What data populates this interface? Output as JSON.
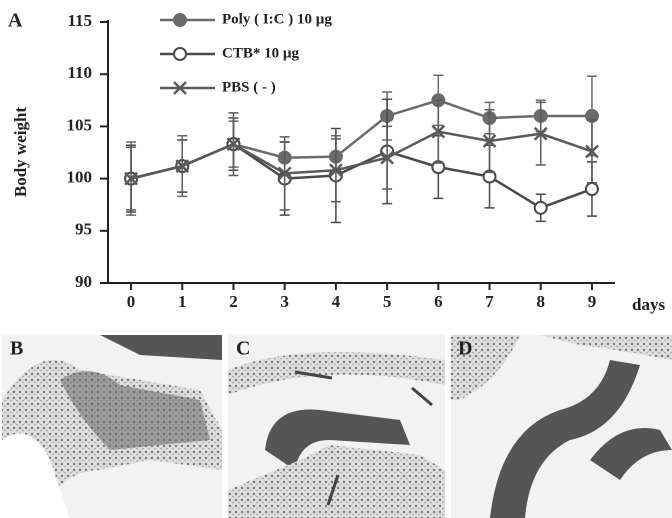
{
  "chart_data": {
    "type": "line",
    "panel_label": "A",
    "ylabel": "Body weight",
    "xlabel": "days",
    "x": [
      0,
      1,
      2,
      3,
      4,
      5,
      6,
      7,
      8,
      9
    ],
    "xlim": [
      -0.45,
      9.45
    ],
    "xticks": [
      0,
      1,
      2,
      3,
      4,
      5,
      6,
      7,
      8,
      9
    ],
    "ylim": [
      90,
      115
    ],
    "yticks": [
      90,
      95,
      100,
      105,
      110,
      115
    ],
    "grid": false,
    "legend": "upper left",
    "series": [
      {
        "name": "Poly ( I:C ) 10 µg",
        "color": "#6a6a6a",
        "marker": "filled-circle",
        "values": [
          100,
          101.2,
          103.3,
          102,
          102.1,
          106,
          107.5,
          105.8,
          106,
          106
        ],
        "errors": [
          3.5,
          2.9,
          2.2,
          1.5,
          2,
          2.3,
          2.4,
          1.5,
          1.5,
          3.8
        ]
      },
      {
        "name": "CTB* 10 µg",
        "color": "#4a4a4a",
        "marker": "open-circle",
        "values": [
          100,
          101.2,
          103.3,
          100,
          100.3,
          102.6,
          101.1,
          100.2,
          97.2,
          99
        ],
        "errors": [
          3.2,
          2.5,
          2.5,
          3.5,
          4.5,
          5,
          3,
          3,
          1.3,
          2.6
        ]
      },
      {
        "name": "PBS ( - )",
        "color": "#5a5a5a",
        "marker": "cross",
        "values": [
          100,
          101.2,
          103.3,
          100.5,
          100.8,
          102,
          104.5,
          103.6,
          104.3,
          102.6
        ],
        "errors": [
          3,
          2.5,
          3,
          3.5,
          3,
          3,
          3,
          3,
          3,
          3
        ]
      }
    ]
  },
  "images": [
    {
      "label": "B"
    },
    {
      "label": "C"
    },
    {
      "label": "D"
    }
  ]
}
